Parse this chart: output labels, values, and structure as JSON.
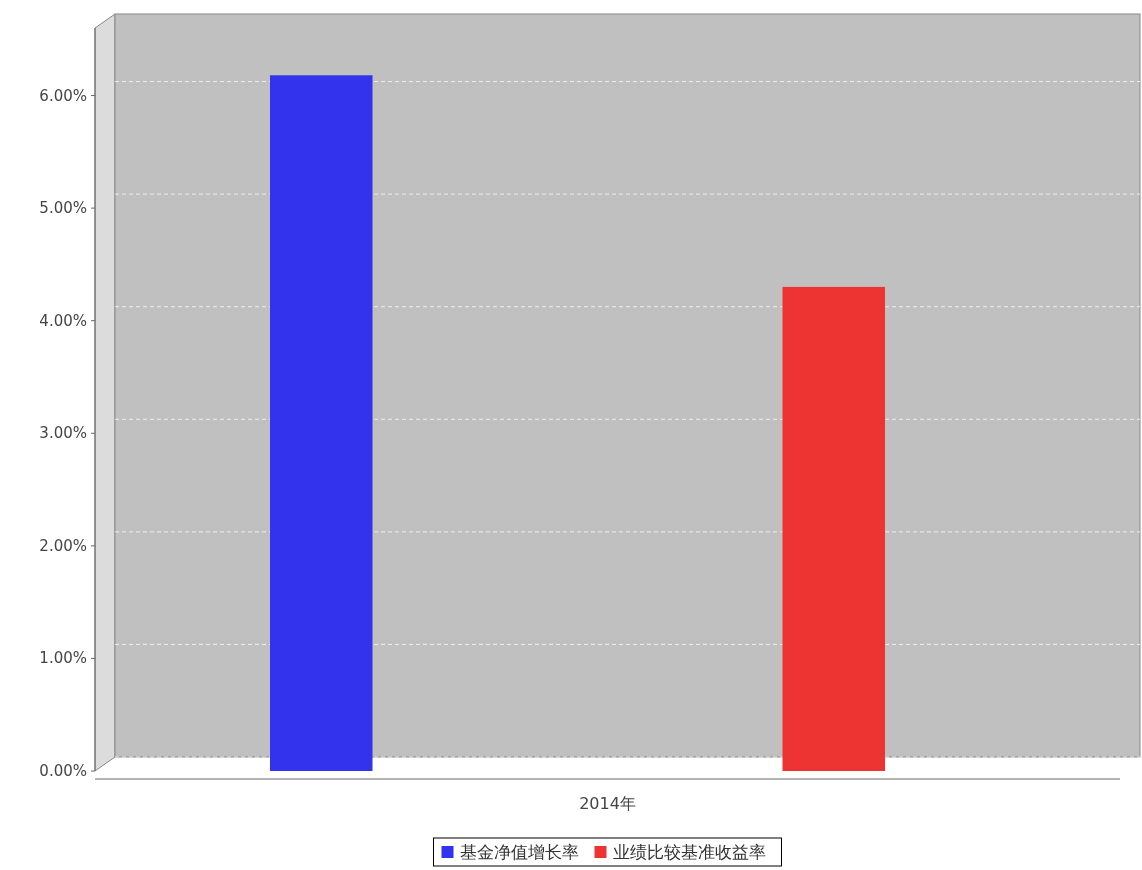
{
  "chart_data": {
    "type": "bar",
    "categories": [
      "2014年"
    ],
    "series": [
      {
        "name": "基金净值增长率",
        "color": "#3333ee",
        "values": [
          6.18
        ]
      },
      {
        "name": "业绩比较基准收益率",
        "color": "#ee3333",
        "values": [
          4.3
        ]
      }
    ],
    "ylim": [
      0,
      6.6
    ],
    "yticks": [
      {
        "value": 0,
        "label": "0.00%"
      },
      {
        "value": 1,
        "label": "1.00%"
      },
      {
        "value": 2,
        "label": "2.00%"
      },
      {
        "value": 3,
        "label": "3.00%"
      },
      {
        "value": 4,
        "label": "4.00%"
      },
      {
        "value": 5,
        "label": "5.00%"
      },
      {
        "value": 6,
        "label": "6.00%"
      }
    ],
    "grid": "y",
    "legend": "bottom"
  }
}
